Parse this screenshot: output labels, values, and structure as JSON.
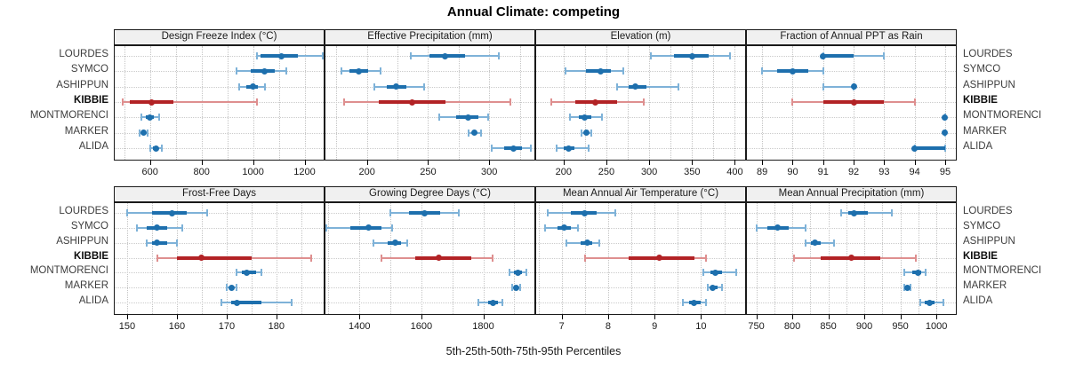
{
  "title": "Annual Climate: competing",
  "caption": "5th-25th-50th-75th-95th Percentiles",
  "percentiles": [
    "5th",
    "25th",
    "50th",
    "75th",
    "95th"
  ],
  "stations": [
    "LOURDES",
    "SYMCO",
    "ASHIPPUN",
    "KIBBIE",
    "MONTMORENCI",
    "MARKER",
    "ALIDA"
  ],
  "highlighted_station": "KIBBIE",
  "colors": {
    "series_blue": "#1d6fad",
    "series_blue_light": "#7eb2d8",
    "highlight_red": "#b22225",
    "highlight_red_light": "#de8f8f",
    "grid": "#c9c9c9",
    "header_bg": "#f0f0f0",
    "border": "#1a1a1a",
    "text": "#1a1a1a"
  },
  "chart_data": [
    {
      "type": "scatter",
      "title": "Design Freeze Index (°C)",
      "xlim": [
        463,
        1274
      ],
      "ticks": [
        600,
        800,
        1000,
        1200
      ],
      "grid": [
        500,
        600,
        700,
        800,
        900,
        1000,
        1100,
        1200
      ],
      "series": [
        {
          "name": "LOURDES",
          "values": [
            1015,
            1030,
            1110,
            1175,
            1270
          ]
        },
        {
          "name": "SYMCO",
          "values": [
            935,
            990,
            1045,
            1085,
            1130
          ]
        },
        {
          "name": "ASHIPPUN",
          "values": [
            945,
            975,
            1000,
            1020,
            1045
          ]
        },
        {
          "name": "KIBBIE",
          "values": [
            495,
            520,
            605,
            690,
            1015
          ]
        },
        {
          "name": "MONTMORENCI",
          "values": [
            565,
            585,
            600,
            615,
            635
          ]
        },
        {
          "name": "MARKER",
          "values": [
            560,
            570,
            575,
            580,
            590
          ]
        },
        {
          "name": "ALIDA",
          "values": [
            600,
            612,
            622,
            632,
            645
          ]
        }
      ]
    },
    {
      "type": "scatter",
      "title": "Effective Precipitation (mm)",
      "xlim": [
        166,
        337
      ],
      "ticks": [
        200,
        250,
        300
      ],
      "grid": [
        175,
        200,
        225,
        250,
        275,
        300,
        325
      ],
      "series": [
        {
          "name": "LOURDES",
          "values": [
            236,
            251,
            264,
            280,
            308
          ]
        },
        {
          "name": "SYMCO",
          "values": [
            179,
            186,
            193,
            201,
            211
          ]
        },
        {
          "name": "ASHIPPUN",
          "values": [
            206,
            216,
            224,
            232,
            247
          ]
        },
        {
          "name": "KIBBIE",
          "values": [
            181,
            210,
            237,
            264,
            317
          ]
        },
        {
          "name": "MONTMORENCI",
          "values": [
            259,
            273,
            283,
            291,
            299
          ]
        },
        {
          "name": "MARKER",
          "values": [
            283,
            286,
            288,
            290,
            293
          ]
        },
        {
          "name": "ALIDA",
          "values": [
            302,
            312,
            320,
            327,
            334
          ]
        }
      ]
    },
    {
      "type": "scatter",
      "title": "Elevation (m)",
      "xlim": [
        168,
        412
      ],
      "ticks": [
        200,
        250,
        300,
        350,
        400
      ],
      "grid": [
        200,
        225,
        250,
        275,
        300,
        325,
        350,
        375,
        400
      ],
      "series": [
        {
          "name": "LOURDES",
          "values": [
            302,
            329,
            350,
            369,
            394
          ]
        },
        {
          "name": "SYMCO",
          "values": [
            202,
            226,
            243,
            255,
            270
          ]
        },
        {
          "name": "ASHIPPUN",
          "values": [
            263,
            276,
            284,
            297,
            334
          ]
        },
        {
          "name": "KIBBIE",
          "values": [
            186,
            214,
            237,
            262,
            294
          ]
        },
        {
          "name": "MONTMORENCI",
          "values": [
            207,
            218,
            225,
            232,
            245
          ]
        },
        {
          "name": "MARKER",
          "values": [
            221,
            224,
            227,
            229,
            232
          ]
        },
        {
          "name": "ALIDA",
          "values": [
            192,
            200,
            206,
            213,
            229
          ]
        }
      ]
    },
    {
      "type": "scatter",
      "title": "Fraction of Annual PPT as Rain",
      "xlim": [
        88.5,
        95.35
      ],
      "ticks": [
        89,
        90,
        91,
        92,
        93,
        94,
        95
      ],
      "grid": [
        89,
        90,
        91,
        92,
        93,
        94,
        95
      ],
      "series": [
        {
          "name": "LOURDES",
          "values": [
            91,
            91,
            91,
            92,
            93
          ]
        },
        {
          "name": "SYMCO",
          "values": [
            89,
            89.5,
            90,
            90.5,
            91
          ]
        },
        {
          "name": "ASHIPPUN",
          "values": [
            91,
            92,
            92,
            92,
            92
          ]
        },
        {
          "name": "KIBBIE",
          "values": [
            90,
            91,
            92,
            93,
            94
          ]
        },
        {
          "name": "MONTMORENCI",
          "values": [
            95,
            95,
            95,
            95,
            95
          ]
        },
        {
          "name": "MARKER",
          "values": [
            95,
            95,
            95,
            95,
            95
          ]
        },
        {
          "name": "ALIDA",
          "values": [
            94,
            94,
            94,
            95,
            95
          ]
        }
      ]
    },
    {
      "type": "scatter",
      "title": "Frost-Free Days",
      "xlim": [
        147.5,
        189.5
      ],
      "ticks": [
        150,
        160,
        170,
        180
      ],
      "grid": [
        150,
        155,
        160,
        165,
        170,
        175,
        180,
        185
      ],
      "series": [
        {
          "name": "LOURDES",
          "values": [
            150,
            155,
            159,
            162,
            166
          ]
        },
        {
          "name": "SYMCO",
          "values": [
            152,
            154,
            156,
            158,
            161
          ]
        },
        {
          "name": "ASHIPPUN",
          "values": [
            154,
            155,
            156,
            158,
            160
          ]
        },
        {
          "name": "KIBBIE",
          "values": [
            156,
            160,
            165,
            175,
            187
          ]
        },
        {
          "name": "MONTMORENCI",
          "values": [
            172,
            173,
            174,
            176,
            177
          ]
        },
        {
          "name": "MARKER",
          "values": [
            170,
            170.5,
            171,
            171.5,
            172
          ]
        },
        {
          "name": "ALIDA",
          "values": [
            169,
            171,
            172,
            177,
            183
          ]
        }
      ]
    },
    {
      "type": "scatter",
      "title": "Growing Degree Days (°C)",
      "xlim": [
        1290,
        1965
      ],
      "ticks": [
        1400,
        1600,
        1800
      ],
      "grid": [
        1300,
        1400,
        1500,
        1600,
        1700,
        1800,
        1900
      ],
      "series": [
        {
          "name": "LOURDES",
          "values": [
            1500,
            1560,
            1610,
            1660,
            1720
          ]
        },
        {
          "name": "SYMCO",
          "values": [
            1292,
            1370,
            1430,
            1470,
            1505
          ]
        },
        {
          "name": "ASHIPPUN",
          "values": [
            1445,
            1490,
            1515,
            1535,
            1555
          ]
        },
        {
          "name": "KIBBIE",
          "values": [
            1470,
            1580,
            1655,
            1760,
            1830
          ]
        },
        {
          "name": "MONTMORENCI",
          "values": [
            1885,
            1900,
            1912,
            1925,
            1940
          ]
        },
        {
          "name": "MARKER",
          "values": [
            1893,
            1900,
            1906,
            1912,
            1918
          ]
        },
        {
          "name": "ALIDA",
          "values": [
            1785,
            1815,
            1832,
            1848,
            1862
          ]
        }
      ]
    },
    {
      "type": "scatter",
      "title": "Mean Annual Air Temperature (°C)",
      "xlim": [
        6.45,
        10.95
      ],
      "ticks": [
        7,
        8,
        9,
        10
      ],
      "grid": [
        6.5,
        7,
        7.5,
        8,
        8.5,
        9,
        9.5,
        10,
        10.5
      ],
      "series": [
        {
          "name": "LOURDES",
          "values": [
            6.7,
            7.2,
            7.5,
            7.75,
            8.15
          ]
        },
        {
          "name": "SYMCO",
          "values": [
            6.65,
            6.9,
            7.05,
            7.2,
            7.35
          ]
        },
        {
          "name": "ASHIPPUN",
          "values": [
            7.1,
            7.4,
            7.55,
            7.65,
            7.8
          ]
        },
        {
          "name": "KIBBIE",
          "values": [
            7.5,
            8.45,
            9.1,
            9.85,
            10.1
          ]
        },
        {
          "name": "MONTMORENCI",
          "values": [
            10.05,
            10.2,
            10.3,
            10.45,
            10.75
          ]
        },
        {
          "name": "MARKER",
          "values": [
            10.15,
            10.2,
            10.25,
            10.35,
            10.45
          ]
        },
        {
          "name": "ALIDA",
          "values": [
            9.6,
            9.75,
            9.85,
            10.0,
            10.1
          ]
        }
      ]
    },
    {
      "type": "scatter",
      "title": "Mean Annual Precipitation (mm)",
      "xlim": [
        737,
        1027
      ],
      "ticks": [
        750,
        800,
        850,
        900,
        950,
        1000
      ],
      "grid": [
        750,
        775,
        800,
        825,
        850,
        875,
        900,
        925,
        950,
        975,
        1000
      ],
      "series": [
        {
          "name": "LOURDES",
          "values": [
            868,
            878,
            886,
            905,
            938
          ]
        },
        {
          "name": "SYMCO",
          "values": [
            750,
            765,
            779,
            795,
            818
          ]
        },
        {
          "name": "ASHIPPUN",
          "values": [
            818,
            826,
            832,
            840,
            858
          ]
        },
        {
          "name": "KIBBIE",
          "values": [
            802,
            840,
            882,
            922,
            972
          ]
        },
        {
          "name": "MONTMORENCI",
          "values": [
            955,
            967,
            974,
            979,
            985
          ]
        },
        {
          "name": "MARKER",
          "values": [
            956,
            958,
            960,
            962,
            964
          ]
        },
        {
          "name": "ALIDA",
          "values": [
            978,
            984,
            990,
            997,
            1010
          ]
        }
      ]
    }
  ]
}
